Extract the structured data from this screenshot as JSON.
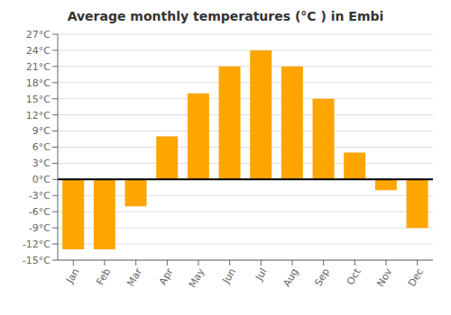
{
  "chart_data": {
    "type": "bar",
    "title": "Average monthly temperatures (°C ) in Embi",
    "categories": [
      "Jan",
      "Feb",
      "Mar",
      "Apr",
      "May",
      "Jun",
      "Jul",
      "Aug",
      "Sep",
      "Oct",
      "Nov",
      "Dec"
    ],
    "values": [
      -13,
      -13,
      -5,
      8,
      16,
      21,
      24,
      21,
      15,
      5,
      -2,
      -9
    ],
    "color": "#FFA500",
    "ylim": [
      -15,
      27
    ],
    "yticks": [
      {
        "value": -15,
        "label": "-15°C"
      },
      {
        "value": -12,
        "label": "-12°C"
      },
      {
        "value": -9,
        "label": "-9°C"
      },
      {
        "value": -6,
        "label": "-6°C"
      },
      {
        "value": -3,
        "label": "-3°C"
      },
      {
        "value": 0,
        "label": "0°C"
      },
      {
        "value": 3,
        "label": "3°C"
      },
      {
        "value": 6,
        "label": "6°C"
      },
      {
        "value": 9,
        "label": "9°C"
      },
      {
        "value": 12,
        "label": "12°C"
      },
      {
        "value": 15,
        "label": "15°C"
      },
      {
        "value": 18,
        "label": "18°C"
      },
      {
        "value": 21,
        "label": "21°C"
      },
      {
        "value": 24,
        "label": "24°C"
      },
      {
        "value": 27,
        "label": "27°C"
      }
    ],
    "grid": true
  }
}
